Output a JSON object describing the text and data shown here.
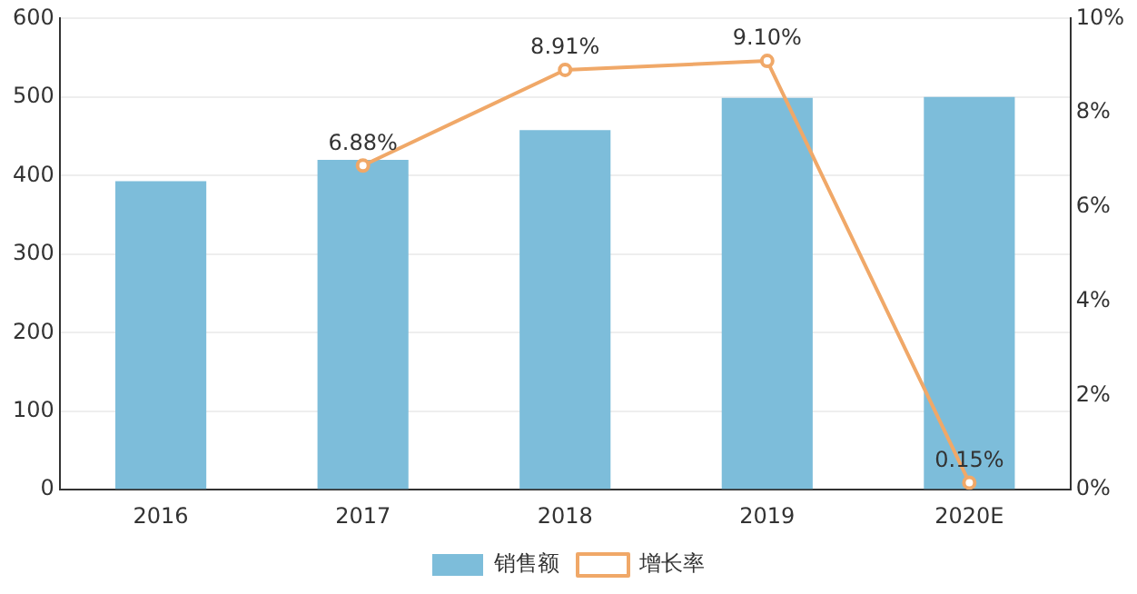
{
  "chart_data": {
    "type": "bar",
    "categories": [
      "2016",
      "2017",
      "2018",
      "2019",
      "2020E"
    ],
    "series": [
      {
        "name": "销售额",
        "color": "#7dbdda",
        "values": [
          393,
          420,
          458,
          499,
          500
        ]
      },
      {
        "name": "增长率",
        "type": "line",
        "axis": "y2",
        "color": "#f0a868",
        "marker": "circle",
        "values": [
          null,
          6.88,
          8.91,
          9.1,
          0.15
        ],
        "value_labels": [
          null,
          "6.88%",
          "8.91%",
          "9.10%",
          "0.15%"
        ]
      }
    ],
    "ylim": [
      0,
      600
    ],
    "yticks": [
      0,
      100,
      200,
      300,
      400,
      500,
      600
    ],
    "y2lim": [
      0,
      10
    ],
    "y2ticks": [
      {
        "value": 0,
        "label": "0%"
      },
      {
        "value": 2,
        "label": "2%"
      },
      {
        "value": 4,
        "label": "4%"
      },
      {
        "value": 6,
        "label": "6%"
      },
      {
        "value": 8,
        "label": "8%"
      },
      {
        "value": 10,
        "label": "10%"
      }
    ],
    "grid": "y",
    "legend": "bottom"
  }
}
